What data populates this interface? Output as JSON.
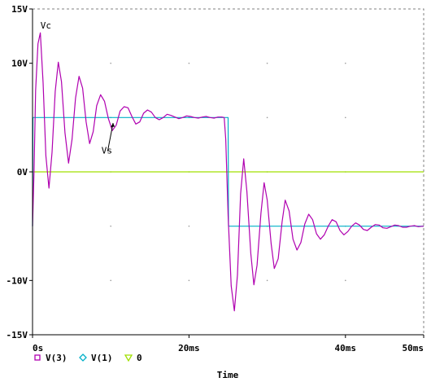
{
  "chart_data": {
    "type": "line",
    "title": "",
    "xlabel": "Time",
    "ylabel": "",
    "xlim": [
      0,
      50
    ],
    "ylim": [
      -15,
      15
    ],
    "grid": true,
    "legend_position": "bottom-left",
    "x_ticks": [
      {
        "value": 0,
        "label": "0s"
      },
      {
        "value": 20,
        "label": "20ms"
      },
      {
        "value": 40,
        "label": "40ms"
      },
      {
        "value": 50,
        "label": "50ms"
      }
    ],
    "y_ticks": [
      {
        "value": 15,
        "label": "15V"
      },
      {
        "value": 10,
        "label": "10V"
      },
      {
        "value": 0,
        "label": "0V"
      },
      {
        "value": -10,
        "label": "-10V"
      },
      {
        "value": -15,
        "label": "-15V"
      }
    ],
    "annotations": [
      {
        "text": "Vc",
        "x": 0.6,
        "y": 13.5
      },
      {
        "text": "Vs",
        "x": 8.4,
        "y": 2.0
      }
    ],
    "series": [
      {
        "name": "V(3)",
        "color": "#b000b0",
        "marker": "square",
        "points": [
          [
            0,
            -5
          ],
          [
            0.2,
            0.2
          ],
          [
            0.4,
            7.5
          ],
          [
            0.7,
            11.8
          ],
          [
            1.0,
            12.8
          ],
          [
            1.35,
            8.2
          ],
          [
            1.7,
            1.5
          ],
          [
            2.1,
            -1.5
          ],
          [
            2.5,
            1.8
          ],
          [
            2.9,
            7.4
          ],
          [
            3.3,
            10.1
          ],
          [
            3.7,
            8.3
          ],
          [
            4.15,
            3.6
          ],
          [
            4.6,
            0.8
          ],
          [
            5.05,
            3.0
          ],
          [
            5.5,
            6.8
          ],
          [
            5.95,
            8.8
          ],
          [
            6.4,
            7.7
          ],
          [
            6.85,
            4.6
          ],
          [
            7.3,
            2.6
          ],
          [
            7.75,
            3.7
          ],
          [
            8.2,
            6.1
          ],
          [
            8.7,
            7.1
          ],
          [
            9.2,
            6.5
          ],
          [
            9.7,
            4.9
          ],
          [
            10.2,
            3.8
          ],
          [
            10.7,
            4.3
          ],
          [
            11.2,
            5.6
          ],
          [
            11.7,
            6.0
          ],
          [
            12.2,
            5.9
          ],
          [
            12.7,
            5.1
          ],
          [
            13.2,
            4.4
          ],
          [
            13.7,
            4.6
          ],
          [
            14.2,
            5.4
          ],
          [
            14.7,
            5.7
          ],
          [
            15.2,
            5.5
          ],
          [
            15.7,
            5.0
          ],
          [
            16.2,
            4.8
          ],
          [
            16.7,
            5.0
          ],
          [
            17.2,
            5.3
          ],
          [
            17.7,
            5.2
          ],
          [
            18.2,
            5.05
          ],
          [
            18.7,
            4.9
          ],
          [
            19.2,
            5.0
          ],
          [
            19.7,
            5.15
          ],
          [
            20.2,
            5.1
          ],
          [
            20.7,
            5.0
          ],
          [
            21.2,
            4.95
          ],
          [
            21.7,
            5.05
          ],
          [
            22.2,
            5.1
          ],
          [
            22.7,
            5.0
          ],
          [
            23.2,
            4.95
          ],
          [
            23.7,
            5.05
          ],
          [
            24.2,
            5.05
          ],
          [
            24.5,
            5.0
          ],
          [
            24.7,
            3.0
          ],
          [
            25.0,
            -4.0
          ],
          [
            25.4,
            -10.5
          ],
          [
            25.8,
            -12.8
          ],
          [
            26.2,
            -9.5
          ],
          [
            26.6,
            -2.0
          ],
          [
            27.0,
            1.2
          ],
          [
            27.4,
            -1.8
          ],
          [
            27.9,
            -7.5
          ],
          [
            28.3,
            -10.4
          ],
          [
            28.7,
            -8.6
          ],
          [
            29.2,
            -3.8
          ],
          [
            29.6,
            -1.0
          ],
          [
            30.0,
            -2.6
          ],
          [
            30.5,
            -6.6
          ],
          [
            30.9,
            -8.9
          ],
          [
            31.4,
            -8.0
          ],
          [
            31.9,
            -4.6
          ],
          [
            32.3,
            -2.6
          ],
          [
            32.8,
            -3.6
          ],
          [
            33.3,
            -6.2
          ],
          [
            33.8,
            -7.2
          ],
          [
            34.3,
            -6.5
          ],
          [
            34.8,
            -4.8
          ],
          [
            35.3,
            -3.9
          ],
          [
            35.8,
            -4.4
          ],
          [
            36.3,
            -5.7
          ],
          [
            36.8,
            -6.2
          ],
          [
            37.3,
            -5.8
          ],
          [
            37.8,
            -5.0
          ],
          [
            38.3,
            -4.4
          ],
          [
            38.8,
            -4.6
          ],
          [
            39.3,
            -5.4
          ],
          [
            39.8,
            -5.8
          ],
          [
            40.3,
            -5.5
          ],
          [
            40.8,
            -5.0
          ],
          [
            41.3,
            -4.7
          ],
          [
            41.8,
            -4.9
          ],
          [
            42.3,
            -5.3
          ],
          [
            42.8,
            -5.4
          ],
          [
            43.3,
            -5.1
          ],
          [
            43.8,
            -4.85
          ],
          [
            44.3,
            -4.9
          ],
          [
            44.8,
            -5.15
          ],
          [
            45.3,
            -5.2
          ],
          [
            45.8,
            -5.05
          ],
          [
            46.3,
            -4.9
          ],
          [
            46.8,
            -4.95
          ],
          [
            47.3,
            -5.1
          ],
          [
            47.8,
            -5.1
          ],
          [
            48.3,
            -5.0
          ],
          [
            48.8,
            -4.95
          ],
          [
            49.3,
            -5.05
          ],
          [
            50,
            -5.0
          ]
        ]
      },
      {
        "name": "V(1)",
        "color": "#00b0c8",
        "marker": "diamond",
        "points": [
          [
            0,
            -5
          ],
          [
            0.05,
            5
          ],
          [
            25,
            5
          ],
          [
            25.05,
            -5
          ],
          [
            50,
            -5
          ]
        ]
      },
      {
        "name": "0",
        "color": "#a0e000",
        "marker": "triangle",
        "points": [
          [
            0,
            0
          ],
          [
            50,
            0
          ]
        ]
      }
    ]
  }
}
